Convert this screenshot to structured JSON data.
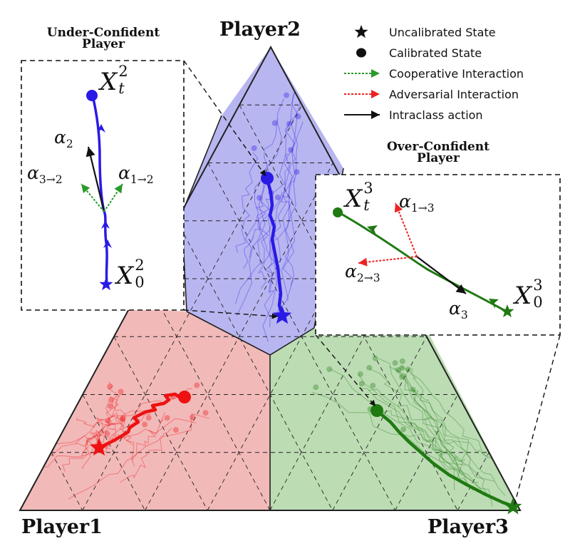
{
  "players": {
    "p1": "Player1",
    "p2": "Player2",
    "p3": "Player3"
  },
  "insets": {
    "under": {
      "title_line1": "Under-Confident",
      "title_line2": "Player"
    },
    "over": {
      "title_line1": "Over-Confident",
      "title_line2": "Player"
    }
  },
  "legend": {
    "uncalibrated": "Uncalibrated State",
    "calibrated": "Calibrated State",
    "cooperative": "Cooperative Interaction",
    "adversarial": "Adversarial Interaction",
    "intraclass": "Intraclass action"
  },
  "math": {
    "X": "X",
    "alpha": "α",
    "sub_t": "t",
    "sub_0": "0",
    "sup_2": "2",
    "sup_3": "3",
    "a2_sub": "2",
    "a3to2_sub": "3→2",
    "a1to2_sub": "1→2",
    "a1to3_sub": "1→3",
    "a2to3_sub": "2→3",
    "a3_sub": "3"
  },
  "colors": {
    "player1": "#ee1111",
    "player2": "#2a1ae6",
    "player3": "#1f7a12",
    "region1": "#f2b9b9",
    "region2": "#b8b6f0",
    "region3": "#bcdcb4",
    "cooperative": "#2a9a2a",
    "adversarial": "#ee2222",
    "intraclass": "#111111"
  }
}
